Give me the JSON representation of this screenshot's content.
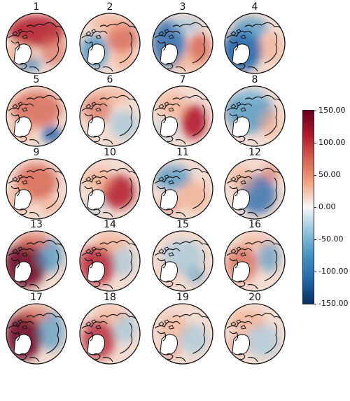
{
  "chart_data": {
    "type": "heatmap",
    "title": "",
    "panels": [
      {
        "label": "1",
        "pattern": "red over north and Pacific sector, blue over Eurasia and North Atlantic"
      },
      {
        "label": "2",
        "pattern": "blue over Greenland and North America, red over central Arctic and Eurasia"
      },
      {
        "label": "3",
        "pattern": "blue over North America and Greenland, red over Siberia"
      },
      {
        "label": "4",
        "pattern": "strong blue over Canada and Greenland, weak red elsewhere"
      },
      {
        "label": "5",
        "pattern": "red over most of the Arctic, blue over North Atlantic"
      },
      {
        "label": "6",
        "pattern": "mixed red and blue, weak anomalies"
      },
      {
        "label": "7",
        "pattern": "strong red over Barents-Kara sector"
      },
      {
        "label": "8",
        "pattern": "blue over most of the domain"
      },
      {
        "label": "9",
        "pattern": "red over central Arctic and Greenland"
      },
      {
        "label": "10",
        "pattern": "strong red over Eurasian Arctic"
      },
      {
        "label": "11",
        "pattern": "blue over Pacific sector, red over Atlantic"
      },
      {
        "label": "12",
        "pattern": "blue over North Atlantic and Canada, red over Pacific"
      },
      {
        "label": "13",
        "pattern": "strong red over Canada and Greenland, blue over Eurasia"
      },
      {
        "label": "14",
        "pattern": "red over Greenland and Canadian Arctic, blue over Siberia"
      },
      {
        "label": "15",
        "pattern": "weak blue over central Arctic"
      },
      {
        "label": "16",
        "pattern": "red over Canada, blue over Eurasia"
      },
      {
        "label": "17",
        "pattern": "strong red over North America and Greenland, blue elsewhere"
      },
      {
        "label": "18",
        "pattern": "red over Greenland, light blue over Eurasia"
      },
      {
        "label": "19",
        "pattern": "mixed weak red and blue"
      },
      {
        "label": "20",
        "pattern": "weak red over Pacific sector, light blue elsewhere"
      }
    ],
    "colorbar": {
      "vmin": -150,
      "vmax": 150,
      "ticks": [
        "150.00",
        "100.00",
        "50.00",
        "0.00",
        "-50.00",
        "-100.00",
        "-150.00"
      ],
      "colormap": "diverging red-white-blue",
      "colors": {
        "max": "#67001f",
        "high": "#b2182b",
        "mid": "#f7f7f7",
        "low": "#2166ac",
        "min": "#053061"
      }
    }
  }
}
